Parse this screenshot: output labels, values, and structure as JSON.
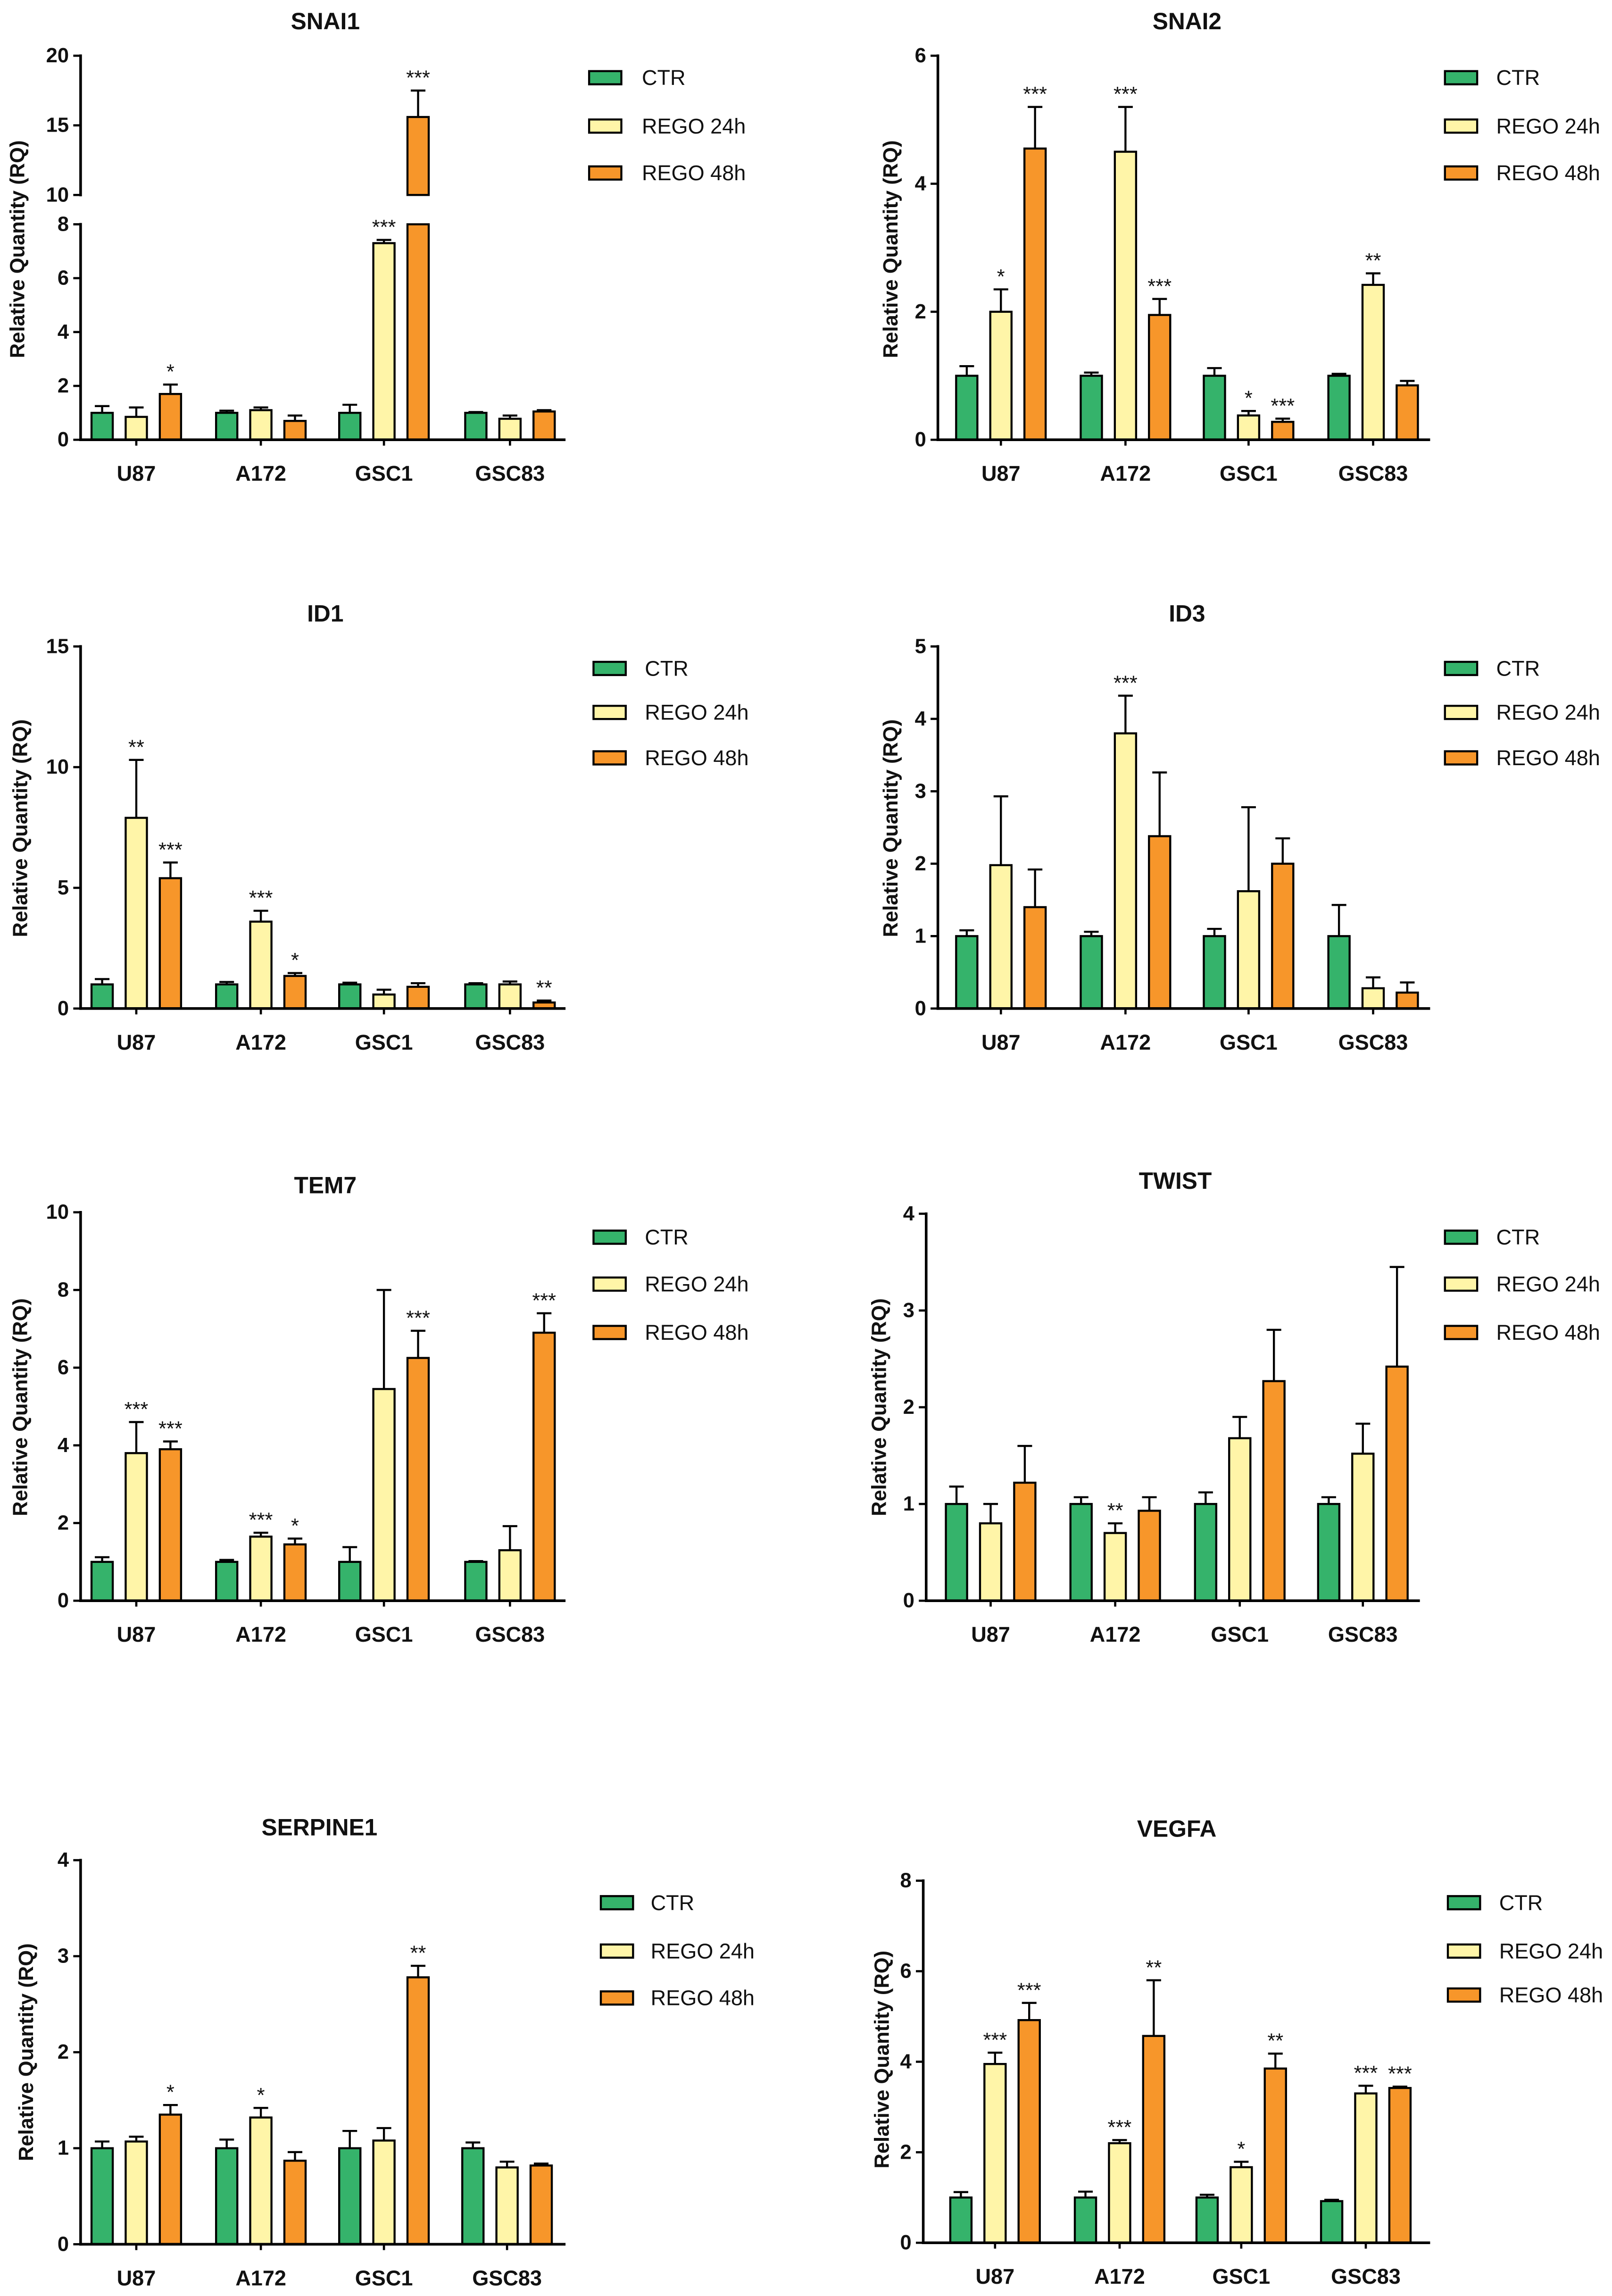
{
  "chart_data": [
    {
      "type": "bar",
      "title": "SNAI1",
      "ylabel": "Relative Quantity (RQ)",
      "categories": [
        "U87",
        "A172",
        "GSC1",
        "GSC83"
      ],
      "ylim": [
        0,
        20
      ],
      "axis_break": [
        8,
        10
      ],
      "yticks": [
        0,
        2,
        4,
        6,
        8,
        10,
        15,
        20
      ],
      "series": [
        {
          "name": "CTR",
          "color": "#35b36b",
          "values": [
            1.0,
            1.0,
            1.0,
            1.0
          ],
          "errors": [
            0.25,
            0.08,
            0.3,
            0.03
          ],
          "significance": [
            null,
            null,
            null,
            null
          ]
        },
        {
          "name": "REGO 24h",
          "color": "#fff5a8",
          "values": [
            0.85,
            1.1,
            7.3,
            0.78
          ],
          "errors": [
            0.35,
            0.1,
            0.12,
            0.12
          ],
          "significance": [
            null,
            null,
            "***",
            null
          ]
        },
        {
          "name": "REGO 48h",
          "color": "#f7962a",
          "values": [
            1.7,
            0.7,
            15.6,
            1.05
          ],
          "errors": [
            0.35,
            0.2,
            1.9,
            0.05
          ],
          "significance": [
            "*",
            null,
            "***",
            null
          ]
        }
      ]
    },
    {
      "type": "bar",
      "title": "SNAI2",
      "ylabel": "Relative Quantity (RQ)",
      "categories": [
        "U87",
        "A172",
        "GSC1",
        "GSC83"
      ],
      "ylim": [
        0,
        6
      ],
      "yticks": [
        0,
        2,
        4,
        6
      ],
      "series": [
        {
          "name": "CTR",
          "color": "#35b36b",
          "values": [
            1.0,
            1.0,
            1.0,
            1.0
          ],
          "errors": [
            0.15,
            0.05,
            0.12,
            0.03
          ],
          "significance": [
            null,
            null,
            null,
            null
          ]
        },
        {
          "name": "REGO 24h",
          "color": "#fff5a8",
          "values": [
            2.0,
            4.5,
            0.38,
            2.42
          ],
          "errors": [
            0.35,
            0.7,
            0.07,
            0.18
          ],
          "significance": [
            "*",
            "***",
            "*",
            "**"
          ]
        },
        {
          "name": "REGO 48h",
          "color": "#f7962a",
          "values": [
            4.55,
            1.95,
            0.28,
            0.85
          ],
          "errors": [
            0.65,
            0.25,
            0.05,
            0.07
          ],
          "significance": [
            "***",
            "***",
            "***",
            null
          ]
        }
      ]
    },
    {
      "type": "bar",
      "title": "ID1",
      "ylabel": "Relative Quantity (RQ)",
      "categories": [
        "U87",
        "A172",
        "GSC1",
        "GSC83"
      ],
      "ylim": [
        0,
        15
      ],
      "yticks": [
        0,
        5,
        10,
        15
      ],
      "series": [
        {
          "name": "CTR",
          "color": "#35b36b",
          "values": [
            1.0,
            1.0,
            1.0,
            1.0
          ],
          "errors": [
            0.22,
            0.1,
            0.07,
            0.05
          ],
          "significance": [
            null,
            null,
            null,
            null
          ]
        },
        {
          "name": "REGO 24h",
          "color": "#fff5a8",
          "values": [
            7.9,
            3.6,
            0.58,
            1.0
          ],
          "errors": [
            2.4,
            0.45,
            0.2,
            0.12
          ],
          "significance": [
            "**",
            "***",
            null,
            null
          ]
        },
        {
          "name": "REGO 48h",
          "color": "#f7962a",
          "values": [
            5.4,
            1.35,
            0.9,
            0.25
          ],
          "errors": [
            0.65,
            0.12,
            0.15,
            0.08
          ],
          "significance": [
            "***",
            "*",
            null,
            "**"
          ]
        }
      ]
    },
    {
      "type": "bar",
      "title": "ID3",
      "ylabel": "Relative Quantity (RQ)",
      "categories": [
        "U87",
        "A172",
        "GSC1",
        "GSC83"
      ],
      "ylim": [
        0,
        5
      ],
      "yticks": [
        0,
        1,
        2,
        3,
        4,
        5
      ],
      "series": [
        {
          "name": "CTR",
          "color": "#35b36b",
          "values": [
            1.0,
            1.0,
            1.0,
            1.0
          ],
          "errors": [
            0.08,
            0.06,
            0.1,
            0.43
          ],
          "significance": [
            null,
            null,
            null,
            null
          ]
        },
        {
          "name": "REGO 24h",
          "color": "#fff5a8",
          "values": [
            1.98,
            3.8,
            1.62,
            0.28
          ],
          "errors": [
            0.95,
            0.52,
            1.16,
            0.15
          ],
          "significance": [
            null,
            "***",
            null,
            null
          ]
        },
        {
          "name": "REGO 48h",
          "color": "#f7962a",
          "values": [
            1.4,
            2.38,
            2.0,
            0.22
          ],
          "errors": [
            0.52,
            0.88,
            0.35,
            0.14
          ],
          "significance": [
            null,
            null,
            null,
            null
          ]
        }
      ]
    },
    {
      "type": "bar",
      "title": "TEM7",
      "ylabel": "Relative Quantity (RQ)",
      "categories": [
        "U87",
        "A172",
        "GSC1",
        "GSC83"
      ],
      "ylim": [
        0,
        10
      ],
      "yticks": [
        0,
        2,
        4,
        6,
        8,
        10
      ],
      "series": [
        {
          "name": "CTR",
          "color": "#35b36b",
          "values": [
            1.0,
            1.0,
            1.0,
            1.0
          ],
          "errors": [
            0.12,
            0.05,
            0.38,
            0.02
          ],
          "significance": [
            null,
            null,
            null,
            null
          ]
        },
        {
          "name": "REGO 24h",
          "color": "#fff5a8",
          "values": [
            3.8,
            1.65,
            5.45,
            1.3
          ],
          "errors": [
            0.8,
            0.1,
            2.55,
            0.62
          ],
          "significance": [
            "***",
            "***",
            null,
            null
          ]
        },
        {
          "name": "REGO 48h",
          "color": "#f7962a",
          "values": [
            3.9,
            1.45,
            6.25,
            6.9
          ],
          "errors": [
            0.2,
            0.15,
            0.7,
            0.5
          ],
          "significance": [
            "***",
            "*",
            "***",
            "***"
          ]
        }
      ]
    },
    {
      "type": "bar",
      "title": "TWIST",
      "ylabel": "Relative Quantity (RQ)",
      "categories": [
        "U87",
        "A172",
        "GSC1",
        "GSC83"
      ],
      "ylim": [
        0,
        4
      ],
      "yticks": [
        0,
        1,
        2,
        3,
        4
      ],
      "series": [
        {
          "name": "CTR",
          "color": "#35b36b",
          "values": [
            1.0,
            1.0,
            1.0,
            1.0
          ],
          "errors": [
            0.18,
            0.07,
            0.12,
            0.07
          ],
          "significance": [
            null,
            null,
            null,
            null
          ]
        },
        {
          "name": "REGO 24h",
          "color": "#fff5a8",
          "values": [
            0.8,
            0.7,
            1.68,
            1.52
          ],
          "errors": [
            0.2,
            0.1,
            0.22,
            0.31
          ],
          "significance": [
            null,
            "**",
            null,
            null
          ]
        },
        {
          "name": "REGO 48h",
          "color": "#f7962a",
          "values": [
            1.22,
            0.93,
            2.27,
            2.42
          ],
          "errors": [
            0.38,
            0.14,
            0.53,
            1.03
          ],
          "significance": [
            null,
            null,
            null,
            null
          ]
        }
      ]
    },
    {
      "type": "bar",
      "title": "SERPINE1",
      "ylabel": "Relative Quantity (RQ)",
      "categories": [
        "U87",
        "A172",
        "GSC1",
        "GSC83"
      ],
      "ylim": [
        0,
        4
      ],
      "yticks": [
        0,
        1,
        2,
        3,
        4
      ],
      "series": [
        {
          "name": "CTR",
          "color": "#35b36b",
          "values": [
            1.0,
            1.0,
            1.0,
            1.0
          ],
          "errors": [
            0.07,
            0.09,
            0.18,
            0.06
          ],
          "significance": [
            null,
            null,
            null,
            null
          ]
        },
        {
          "name": "REGO 24h",
          "color": "#fff5a8",
          "values": [
            1.07,
            1.32,
            1.08,
            0.8
          ],
          "errors": [
            0.05,
            0.1,
            0.13,
            0.06
          ],
          "significance": [
            null,
            "*",
            null,
            null
          ]
        },
        {
          "name": "REGO 48h",
          "color": "#f7962a",
          "values": [
            1.35,
            0.87,
            2.78,
            0.82
          ],
          "errors": [
            0.1,
            0.09,
            0.12,
            0.02
          ],
          "significance": [
            "*",
            null,
            "**",
            null
          ]
        }
      ]
    },
    {
      "type": "bar",
      "title": "VEGFA",
      "ylabel": "Relative Quantity (RQ)",
      "categories": [
        "U87",
        "A172",
        "GSC1",
        "GSC83"
      ],
      "ylim": [
        0,
        8
      ],
      "yticks": [
        0,
        2,
        4,
        6,
        8
      ],
      "series": [
        {
          "name": "CTR",
          "color": "#35b36b",
          "values": [
            1.0,
            1.0,
            1.0,
            0.92
          ],
          "errors": [
            0.12,
            0.13,
            0.06,
            0.03
          ],
          "significance": [
            null,
            null,
            null,
            null
          ]
        },
        {
          "name": "REGO 24h",
          "color": "#fff5a8",
          "values": [
            3.95,
            2.2,
            1.67,
            3.3
          ],
          "errors": [
            0.25,
            0.07,
            0.12,
            0.17
          ],
          "significance": [
            "***",
            "***",
            "*",
            "***"
          ]
        },
        {
          "name": "REGO 48h",
          "color": "#f7962a",
          "values": [
            4.92,
            4.57,
            3.85,
            3.42
          ],
          "errors": [
            0.38,
            1.23,
            0.33,
            0.03
          ],
          "significance": [
            "***",
            "**",
            "**",
            "***"
          ]
        }
      ]
    }
  ]
}
